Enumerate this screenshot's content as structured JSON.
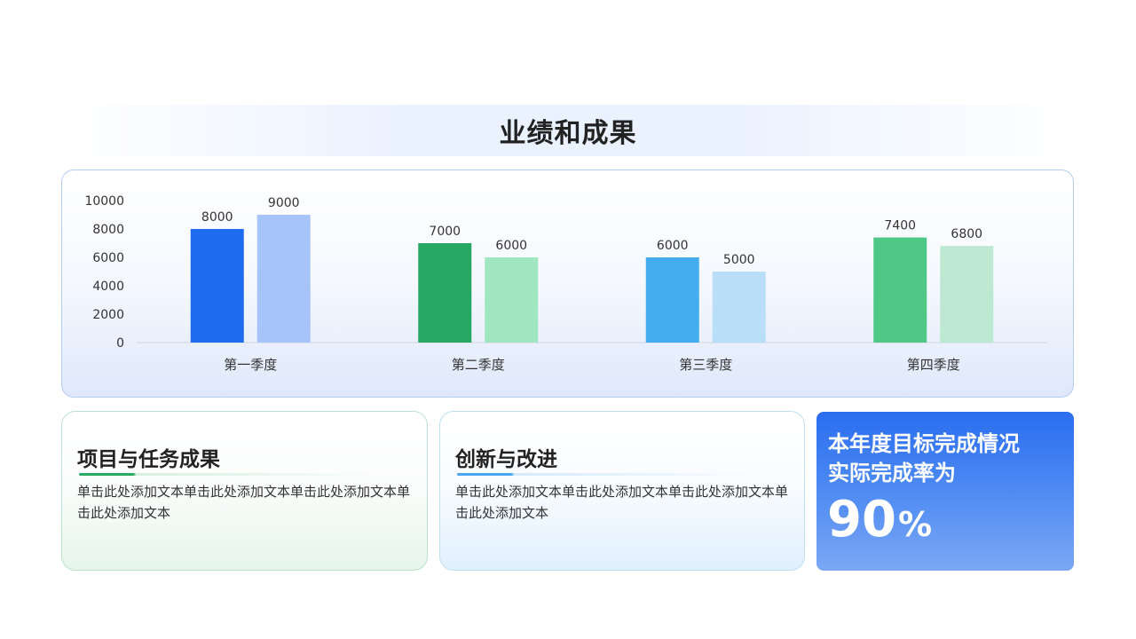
{
  "title": "业绩和成果",
  "chart_data": {
    "type": "bar",
    "categories": [
      "第一季度",
      "第二季度",
      "第三季度",
      "第四季度"
    ],
    "series": [
      {
        "values": [
          8000,
          7000,
          6000,
          7400
        ]
      },
      {
        "values": [
          9000,
          6000,
          5000,
          6800
        ]
      }
    ],
    "bar_colors": [
      [
        "#1e6ced",
        "#a6c4f8"
      ],
      [
        "#27a862",
        "#a0e6c0"
      ],
      [
        "#43adf0",
        "#b8def8"
      ],
      [
        "#4fc886",
        "#bde8d1"
      ]
    ],
    "y_ticks": [
      0,
      2000,
      4000,
      6000,
      8000,
      10000
    ],
    "ylim": [
      0,
      10000
    ],
    "data_labels": true,
    "grid": false,
    "legend": "none"
  },
  "cards": [
    {
      "title": "项目与任务成果",
      "body": "单击此处添加文本单击此处添加文本单击此处添加文本单击此处添加文本",
      "accent": "#2aa865"
    },
    {
      "title": "创新与改进",
      "body": "单击此处添加文本单击此处添加文本单击此处添加文本单击此处添加文本",
      "accent": "#4aa6f0"
    }
  ],
  "kpi": {
    "line1": "本年度目标完成情况",
    "line2": "实际完成率为",
    "value": "90",
    "unit": "%",
    "color": "#2b6df0"
  }
}
